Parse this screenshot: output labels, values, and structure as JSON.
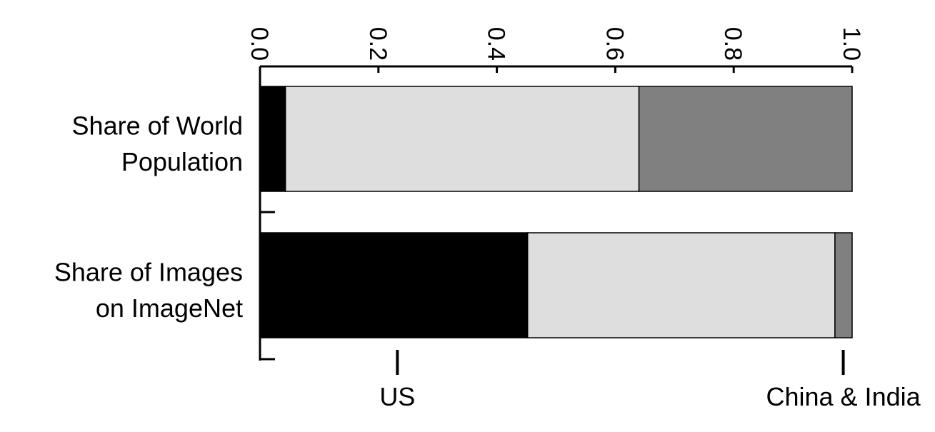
{
  "chart_data": {
    "type": "bar",
    "orientation": "horizontal",
    "stacked": true,
    "categories": [
      [
        "Share of World",
        "Population"
      ],
      [
        "Share of Images",
        "on ImageNet"
      ]
    ],
    "segments": [
      {
        "values": [
          0.043,
          0.597,
          0.36
        ],
        "colors": [
          "#000000",
          "#dedede",
          "#808080"
        ]
      },
      {
        "values": [
          0.452,
          0.519,
          0.029
        ],
        "colors": [
          "#000000",
          "#dedede",
          "#808080"
        ]
      }
    ],
    "xlim": [
      0,
      1
    ],
    "xticks": [
      "0.0",
      "0.2",
      "0.4",
      "0.6",
      "0.8",
      "1.0"
    ],
    "tick_positions": [
      0,
      0.2,
      0.4,
      0.6,
      0.8,
      1.0
    ],
    "annotations": [
      {
        "label": "US",
        "x": 0.232
      },
      {
        "label": "China & India",
        "x": 0.985
      }
    ],
    "legend": "none",
    "grid": false
  }
}
